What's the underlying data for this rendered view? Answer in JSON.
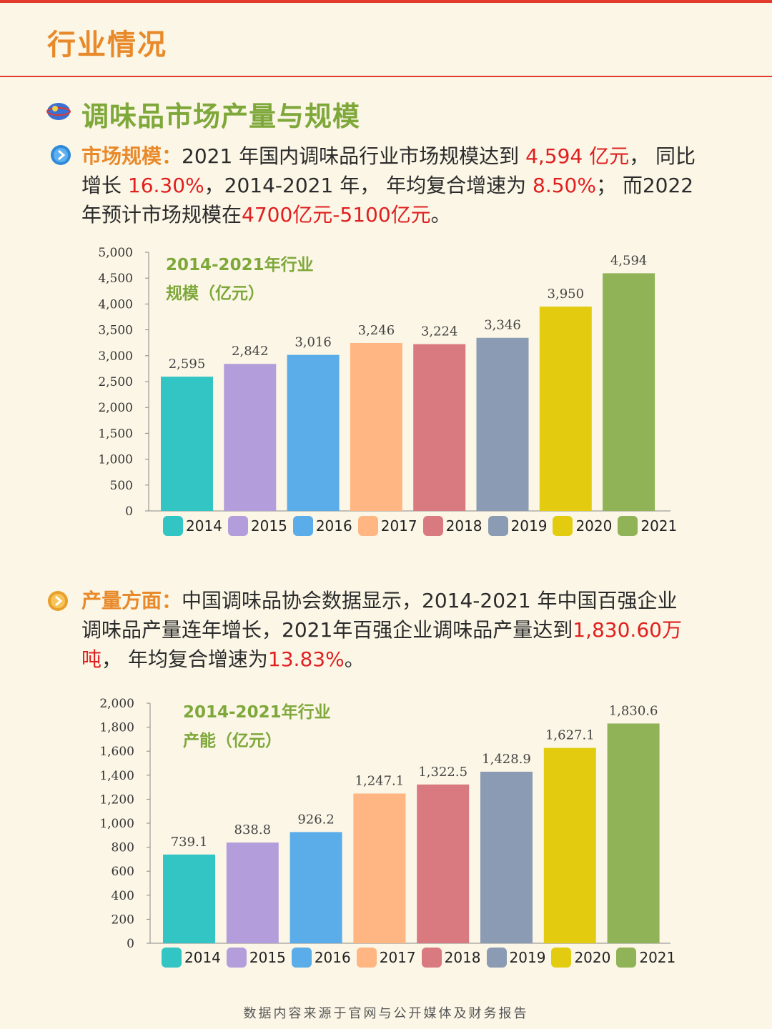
{
  "header": {
    "title": "行业情况"
  },
  "section": {
    "title": "调味品市场产量与规模"
  },
  "para1": {
    "label": "市场规模：",
    "t1": "2021 年国内调味品行业市场规模达到 ",
    "h1": "4,594 亿元",
    "t2": "， 同比增长 ",
    "h2": "16.30%",
    "t3": "，2014-2021 年， 年均复合增速为 ",
    "h3": "8.50%",
    "t4": "； 而2022年预计市场规模在",
    "h4": "4700亿元-5100亿元",
    "t5": "。"
  },
  "para2": {
    "label": "产量方面：",
    "t1": "中国调味品协会数据显示，2014-2021 年中国百强企业调味品产量连年增长，2021年百强企业调味品产量达到",
    "h1": "1,830.60万吨",
    "t2": "， 年均复合增速为",
    "h2": "13.83%",
    "t3": "。"
  },
  "colors": [
    "#33c4c4",
    "#b39ddb",
    "#5aade9",
    "#ffb682",
    "#d97a80",
    "#8a9bb3",
    "#e3cc10",
    "#8fb356"
  ],
  "chart_data": [
    {
      "type": "bar",
      "title": "2014-2021年行业规模（亿元）",
      "title_lines": [
        "2014-2021年行业",
        "规模（亿元）"
      ],
      "categories": [
        "2014",
        "2015",
        "2016",
        "2017",
        "2018",
        "2019",
        "2020",
        "2021"
      ],
      "values": [
        2595,
        2842,
        3016,
        3246,
        3224,
        3346,
        3950,
        4594
      ],
      "value_labels": [
        "2,595",
        "2,842",
        "3,016",
        "3,246",
        "3,224",
        "3,346",
        "3,950",
        "4,594"
      ],
      "yticks": [
        "0",
        "500",
        "1,000",
        "1,500",
        "2,000",
        "2,500",
        "3,000",
        "3,500",
        "4,000",
        "4,500",
        "5,000"
      ],
      "ylim": [
        0,
        5000
      ]
    },
    {
      "type": "bar",
      "title": "2014-2021年行业产能（亿元）",
      "title_lines": [
        "2014-2021年行业",
        "产能（亿元）"
      ],
      "categories": [
        "2014",
        "2015",
        "2016",
        "2017",
        "2018",
        "2019",
        "2020",
        "2021"
      ],
      "values": [
        739.1,
        838.8,
        926.2,
        1247.1,
        1322.5,
        1428.9,
        1627.1,
        1830.6
      ],
      "value_labels": [
        "739.1",
        "838.8",
        "926.2",
        "1,247.1",
        "1,322.5",
        "1,428.9",
        "1,627.1",
        "1,830.6"
      ],
      "yticks": [
        "0",
        "200",
        "400",
        "600",
        "800",
        "1,000",
        "1,200",
        "1,400",
        "1,600",
        "1,800",
        "2,000"
      ],
      "ylim": [
        0,
        2000
      ]
    }
  ],
  "footer": "数据内容来源于官网与公开媒体及财务报告"
}
